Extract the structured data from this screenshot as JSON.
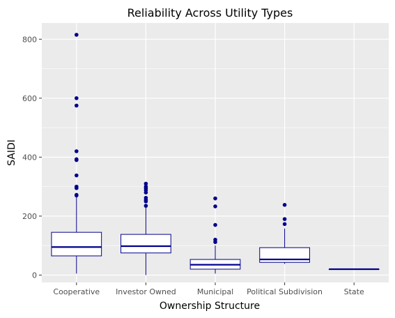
{
  "chart_data": {
    "type": "box",
    "title": "Reliability Across Utility Types",
    "xlabel": "Ownership Structure",
    "ylabel": "SAIDI",
    "ylim": [
      -25,
      855
    ],
    "yticks": [
      0,
      200,
      400,
      600,
      800
    ],
    "grid": true,
    "legend": "none",
    "colors": {
      "panel": "#ebebeb",
      "grid": "#ffffff",
      "box": "#00008b",
      "box_fill": "#ffffff",
      "tick_text": "#4d4d4d"
    },
    "categories": [
      "Cooperative",
      "Investor Owned",
      "Municipal",
      "Political Subdivision",
      "State"
    ],
    "boxes": [
      {
        "category": "Cooperative",
        "min": 5,
        "q1": 65,
        "median": 95,
        "q3": 145,
        "max": 265,
        "outliers": [
          270,
          272,
          295,
          300,
          338,
          390,
          393,
          420,
          575,
          600,
          815
        ]
      },
      {
        "category": "Investor Owned",
        "min": 0,
        "q1": 75,
        "median": 98,
        "q3": 138,
        "max": 232,
        "outliers": [
          235,
          250,
          255,
          262,
          280,
          288,
          295,
          300,
          310
        ]
      },
      {
        "category": "Municipal",
        "min": 5,
        "q1": 20,
        "median": 35,
        "q3": 53,
        "max": 100,
        "outliers": [
          112,
          120,
          170,
          233,
          260
        ]
      },
      {
        "category": "Political Subdivision",
        "min": 38,
        "q1": 43,
        "median": 53,
        "q3": 93,
        "max": 158,
        "outliers": [
          173,
          190,
          238
        ]
      },
      {
        "category": "State",
        "min": 20,
        "q1": 20,
        "median": 20,
        "q3": 20,
        "max": 20,
        "outliers": []
      }
    ]
  }
}
